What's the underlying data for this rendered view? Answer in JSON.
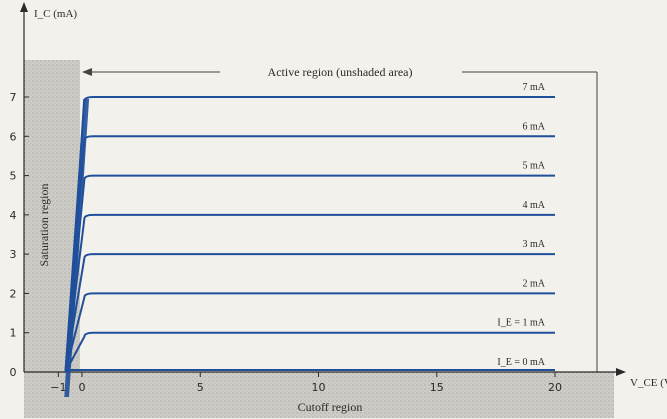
{
  "diagram": {
    "y_axis_label": "I_C (mA)",
    "x_axis_label": "V_CE (V",
    "active_region_label": "Active region (unshaded area)",
    "saturation_region_label": "Saturation region",
    "cutoff_region_label": "Cutoff region",
    "x_ticks": [
      "−1",
      "0",
      "5",
      "10",
      "15",
      "20"
    ],
    "y_ticks": [
      "0",
      "1",
      "2",
      "3",
      "4",
      "5",
      "6",
      "7"
    ],
    "curve_labels": [
      "7 mA",
      "6 mA",
      "5 mA",
      "4 mA",
      "3 mA",
      "2 mA",
      "I_E = 1 mA",
      "I_E = 0 mA"
    ]
  },
  "chart_data": {
    "type": "line",
    "xlabel": "V_CE (V",
    "ylabel": "I_C (mA)",
    "xlim": [
      -1,
      20
    ],
    "ylim": [
      0,
      7
    ],
    "series": [
      {
        "name": "7 mA",
        "points": [
          [
            -0.7,
            0
          ],
          [
            0.1,
            6.9
          ],
          [
            0.5,
            7
          ],
          [
            20,
            7
          ]
        ]
      },
      {
        "name": "6 mA",
        "points": [
          [
            -0.7,
            0
          ],
          [
            0.1,
            5.9
          ],
          [
            0.5,
            6
          ],
          [
            20,
            6
          ]
        ]
      },
      {
        "name": "5 mA",
        "points": [
          [
            -0.7,
            0
          ],
          [
            0.1,
            4.9
          ],
          [
            0.5,
            5
          ],
          [
            20,
            5
          ]
        ]
      },
      {
        "name": "4 mA",
        "points": [
          [
            -0.7,
            0
          ],
          [
            0.1,
            3.9
          ],
          [
            0.5,
            4
          ],
          [
            20,
            4
          ]
        ]
      },
      {
        "name": "3 mA",
        "points": [
          [
            -0.7,
            0
          ],
          [
            0.1,
            2.9
          ],
          [
            0.5,
            3
          ],
          [
            20,
            3
          ]
        ]
      },
      {
        "name": "2 mA",
        "points": [
          [
            -0.7,
            0
          ],
          [
            0.1,
            1.9
          ],
          [
            0.5,
            2
          ],
          [
            20,
            2
          ]
        ]
      },
      {
        "name": "I_E = 1 mA",
        "points": [
          [
            -0.7,
            0
          ],
          [
            0.1,
            0.9
          ],
          [
            0.5,
            1
          ],
          [
            20,
            1
          ]
        ]
      },
      {
        "name": "I_E = 0 mA",
        "points": [
          [
            -0.7,
            0
          ],
          [
            20,
            0
          ]
        ]
      }
    ],
    "colors": {
      "curve": "#1f4f9a",
      "shade": "#c9c7c2",
      "axis": "#2c2a2a"
    }
  }
}
